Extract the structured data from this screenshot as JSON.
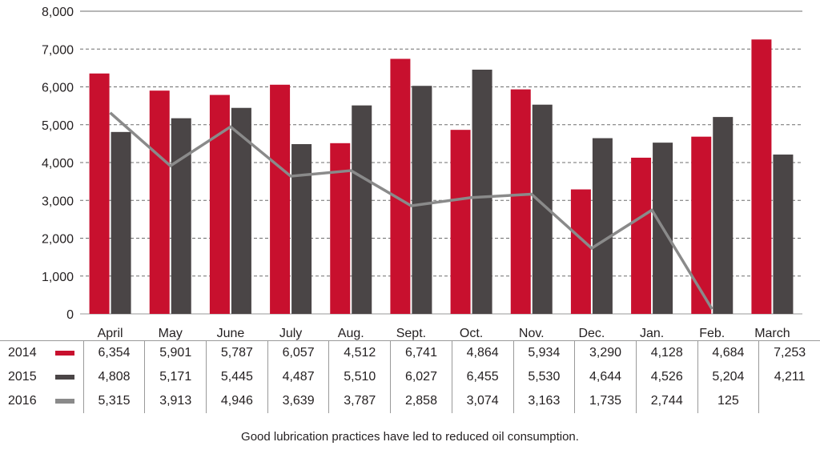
{
  "chart_data": {
    "type": "bar",
    "categories": [
      "April",
      "May",
      "June",
      "July",
      "Aug.",
      "Sept.",
      "Oct.",
      "Nov.",
      "Dec.",
      "Jan.",
      "Feb.",
      "March"
    ],
    "series": [
      {
        "name": "2014",
        "kind": "bar",
        "color": "#c8102e",
        "values": [
          6354,
          5901,
          5787,
          6057,
          4512,
          6741,
          4864,
          5934,
          3290,
          4128,
          4684,
          7253
        ],
        "labels": [
          "6,354",
          "5,901",
          "5,787",
          "6,057",
          "4,512",
          "6,741",
          "4,864",
          "5,934",
          "3,290",
          "4,128",
          "4,684",
          "7,253"
        ]
      },
      {
        "name": "2015",
        "kind": "bar",
        "color": "#4a4546",
        "values": [
          4808,
          5171,
          5445,
          4487,
          5510,
          6027,
          6455,
          5530,
          4644,
          4526,
          5204,
          4211
        ],
        "labels": [
          "4,808",
          "5,171",
          "5,445",
          "4,487",
          "5,510",
          "6,027",
          "6,455",
          "5,530",
          "4,644",
          "4,526",
          "5,204",
          "4,211"
        ]
      },
      {
        "name": "2016",
        "kind": "line",
        "color": "#8a8a8a",
        "values": [
          5315,
          3913,
          4946,
          3639,
          3787,
          2858,
          3074,
          3163,
          1735,
          2744,
          125,
          null
        ],
        "labels": [
          "5,315",
          "3,913",
          "4,946",
          "3,639",
          "3,787",
          "2,858",
          "3,074",
          "3,163",
          "1,735",
          "2,744",
          "125",
          ""
        ]
      }
    ],
    "yticks": [
      0,
      1000,
      2000,
      3000,
      4000,
      5000,
      6000,
      7000,
      8000
    ],
    "ytick_labels": [
      "0",
      "1,000",
      "2,000",
      "3,000",
      "4,000",
      "5,000",
      "6,000",
      "7,000",
      "8,000"
    ],
    "ylim": [
      0,
      8000
    ],
    "grid": "horizontal dashed",
    "legend": "data table below chart"
  },
  "caption": "Good lubrication practices have led to reduced oil consumption."
}
